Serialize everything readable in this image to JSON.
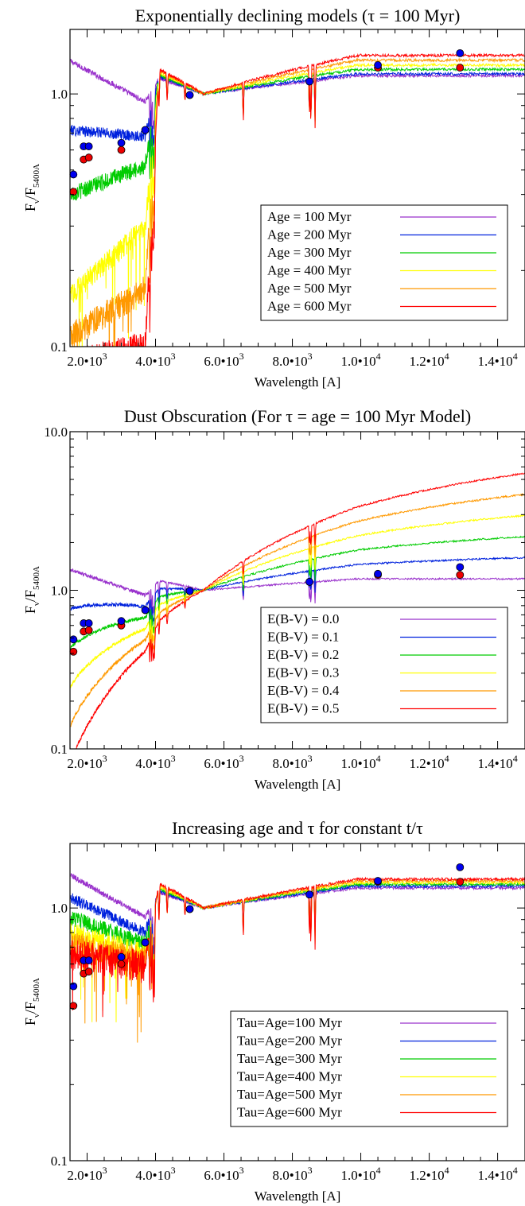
{
  "colors": {
    "c100": "#9932cc",
    "c200": "#0022dd",
    "c300": "#00cc00",
    "c400": "#ffff00",
    "c500": "#ff9900",
    "c600": "#ff0000",
    "point_blue": "#0000ee",
    "point_red": "#ee0000"
  },
  "chart_data": [
    {
      "type": "line",
      "title": "Exponentially declining models (τ = 100 Myr)",
      "xlabel": "Wavelength [A]",
      "ylabel_main": "F",
      "ylabel_sub1": "ν",
      "ylabel_mid": "/F",
      "ylabel_sub2": "5400A",
      "xlim": [
        1500,
        14800
      ],
      "ylim": [
        0.1,
        1.8
      ],
      "yscale": "log",
      "xticks": [
        {
          "x": 2000,
          "mant": "2.0",
          "exp": "3"
        },
        {
          "x": 4000,
          "mant": "4.0",
          "exp": "3"
        },
        {
          "x": 6000,
          "mant": "6.0",
          "exp": "3"
        },
        {
          "x": 8000,
          "mant": "8.0",
          "exp": "3"
        },
        {
          "x": 10000,
          "mant": "1.0",
          "exp": "4"
        },
        {
          "x": 12000,
          "mant": "1.2",
          "exp": "4"
        },
        {
          "x": 14000,
          "mant": "1.4",
          "exp": "4"
        }
      ],
      "yticks": [
        {
          "y": 0.1,
          "label": "0.1"
        },
        {
          "y": 1.0,
          "label": "1.0"
        }
      ],
      "legend_position": "bottom-right",
      "series": [
        {
          "name": "Age = 100 Myr",
          "color": "#9932cc",
          "uv": 1.35,
          "blue": 0.93,
          "red": 1.18
        },
        {
          "name": "Age = 200 Myr",
          "color": "#0022dd",
          "uv": 0.72,
          "blue": 0.68,
          "red": 1.2
        },
        {
          "name": "Age = 300 Myr",
          "color": "#00cc00",
          "uv": 0.4,
          "blue": 0.52,
          "red": 1.25
        },
        {
          "name": "Age = 400 Myr",
          "color": "#ffff00",
          "uv": 0.16,
          "blue": 0.3,
          "red": 1.3
        },
        {
          "name": "Age = 500 Myr",
          "color": "#ff9900",
          "uv": 0.11,
          "blue": 0.17,
          "red": 1.36
        },
        {
          "name": "Age = 600 Myr",
          "color": "#ff0000",
          "uv": 0.085,
          "blue": 0.1,
          "red": 1.42
        }
      ],
      "points_blue": [
        [
          1600,
          0.48
        ],
        [
          1900,
          0.62
        ],
        [
          2050,
          0.62
        ],
        [
          3000,
          0.64
        ],
        [
          3700,
          0.72
        ],
        [
          5000,
          0.99
        ],
        [
          8500,
          1.12
        ],
        [
          10500,
          1.3
        ],
        [
          12900,
          1.45
        ]
      ],
      "points_red": [
        [
          1600,
          0.41
        ],
        [
          1900,
          0.55
        ],
        [
          2050,
          0.56
        ],
        [
          3000,
          0.6
        ],
        [
          3700,
          0.72
        ],
        [
          5000,
          0.99
        ],
        [
          8500,
          1.12
        ],
        [
          10500,
          1.27
        ],
        [
          12900,
          1.27
        ]
      ]
    },
    {
      "type": "line",
      "title": "Dust Obscuration (For τ = age = 100 Myr Model)",
      "xlabel": "Wavelength [A]",
      "ylabel_main": "F",
      "ylabel_sub1": "ν",
      "ylabel_mid": "/F",
      "ylabel_sub2": "5400A",
      "xlim": [
        1500,
        14800
      ],
      "ylim": [
        0.1,
        10.0
      ],
      "yscale": "log",
      "xticks": [
        {
          "x": 2000,
          "mant": "2.0",
          "exp": "3"
        },
        {
          "x": 4000,
          "mant": "4.0",
          "exp": "3"
        },
        {
          "x": 6000,
          "mant": "6.0",
          "exp": "3"
        },
        {
          "x": 8000,
          "mant": "8.0",
          "exp": "3"
        },
        {
          "x": 10000,
          "mant": "1.0",
          "exp": "4"
        },
        {
          "x": 12000,
          "mant": "1.2",
          "exp": "4"
        },
        {
          "x": 14000,
          "mant": "1.4",
          "exp": "4"
        }
      ],
      "yticks": [
        {
          "y": 0.1,
          "label": "0.1"
        },
        {
          "y": 1.0,
          "label": "1.0"
        },
        {
          "y": 10.0,
          "label": "10.0"
        }
      ],
      "legend_position": "bottom-right",
      "series": [
        {
          "name": "E(B-V) = 0.0",
          "color": "#9932cc",
          "ebv": 0.0
        },
        {
          "name": "E(B-V) = 0.1",
          "color": "#0022dd",
          "ebv": 0.1
        },
        {
          "name": "E(B-V) = 0.2",
          "color": "#00cc00",
          "ebv": 0.2
        },
        {
          "name": "E(B-V) = 0.3",
          "color": "#ffff00",
          "ebv": 0.3
        },
        {
          "name": "E(B-V) = 0.4",
          "color": "#ff9900",
          "ebv": 0.4
        },
        {
          "name": "E(B-V) = 0.5",
          "color": "#ff0000",
          "ebv": 0.5
        }
      ],
      "points_blue": [
        [
          1600,
          0.49
        ],
        [
          1900,
          0.62
        ],
        [
          2050,
          0.62
        ],
        [
          3000,
          0.64
        ],
        [
          3700,
          0.75
        ],
        [
          5000,
          0.99
        ],
        [
          8500,
          1.13
        ],
        [
          10500,
          1.27
        ],
        [
          12900,
          1.4
        ]
      ],
      "points_red": [
        [
          1600,
          0.41
        ],
        [
          1900,
          0.55
        ],
        [
          2050,
          0.56
        ],
        [
          3000,
          0.6
        ],
        [
          3700,
          0.75
        ],
        [
          5000,
          0.99
        ],
        [
          8500,
          1.13
        ],
        [
          10500,
          1.25
        ],
        [
          12900,
          1.25
        ]
      ]
    },
    {
      "type": "line",
      "title": "Increasing age and τ for constant t/τ",
      "xlabel": "Wavelength [A]",
      "ylabel_main": "F",
      "ylabel_sub1": "ν",
      "ylabel_mid": "/F",
      "ylabel_sub2": "5400A",
      "xlim": [
        1500,
        14800
      ],
      "ylim": [
        0.1,
        1.8
      ],
      "yscale": "log",
      "xticks": [
        {
          "x": 2000,
          "mant": "2.0",
          "exp": "3"
        },
        {
          "x": 4000,
          "mant": "4.0",
          "exp": "3"
        },
        {
          "x": 6000,
          "mant": "6.0",
          "exp": "3"
        },
        {
          "x": 8000,
          "mant": "8.0",
          "exp": "3"
        },
        {
          "x": 10000,
          "mant": "1.0",
          "exp": "4"
        },
        {
          "x": 12000,
          "mant": "1.2",
          "exp": "4"
        },
        {
          "x": 14000,
          "mant": "1.4",
          "exp": "4"
        }
      ],
      "yticks": [
        {
          "y": 0.1,
          "label": "0.1"
        },
        {
          "y": 1.0,
          "label": "1.0"
        }
      ],
      "legend_position": "bottom-right",
      "series": [
        {
          "name": "Tau=Age=100 Myr",
          "color": "#9932cc",
          "uv": 1.35,
          "blue": 0.92,
          "red": 1.2
        },
        {
          "name": "Tau=Age=200 Myr",
          "color": "#0022dd",
          "uv": 1.1,
          "blue": 0.8,
          "red": 1.22
        },
        {
          "name": "Tau=Age=300 Myr",
          "color": "#00cc00",
          "uv": 0.92,
          "blue": 0.72,
          "red": 1.24
        },
        {
          "name": "Tau=Age=400 Myr",
          "color": "#ffff00",
          "uv": 0.8,
          "blue": 0.66,
          "red": 1.26
        },
        {
          "name": "Tau=Age=500 Myr",
          "color": "#ff9900",
          "uv": 0.72,
          "blue": 0.62,
          "red": 1.28
        },
        {
          "name": "Tau=Age=600 Myr",
          "color": "#ff0000",
          "uv": 0.66,
          "blue": 0.59,
          "red": 1.3
        }
      ],
      "points_blue": [
        [
          1600,
          0.49
        ],
        [
          1900,
          0.62
        ],
        [
          2050,
          0.62
        ],
        [
          3000,
          0.64
        ],
        [
          3700,
          0.73
        ],
        [
          5000,
          0.99
        ],
        [
          8500,
          1.13
        ],
        [
          10500,
          1.28
        ],
        [
          12900,
          1.45
        ]
      ],
      "points_red": [
        [
          1600,
          0.41
        ],
        [
          1900,
          0.55
        ],
        [
          2050,
          0.56
        ],
        [
          3000,
          0.6
        ],
        [
          3700,
          0.73
        ],
        [
          5000,
          0.99
        ],
        [
          8500,
          1.13
        ],
        [
          10500,
          1.27
        ],
        [
          12900,
          1.27
        ]
      ]
    }
  ]
}
